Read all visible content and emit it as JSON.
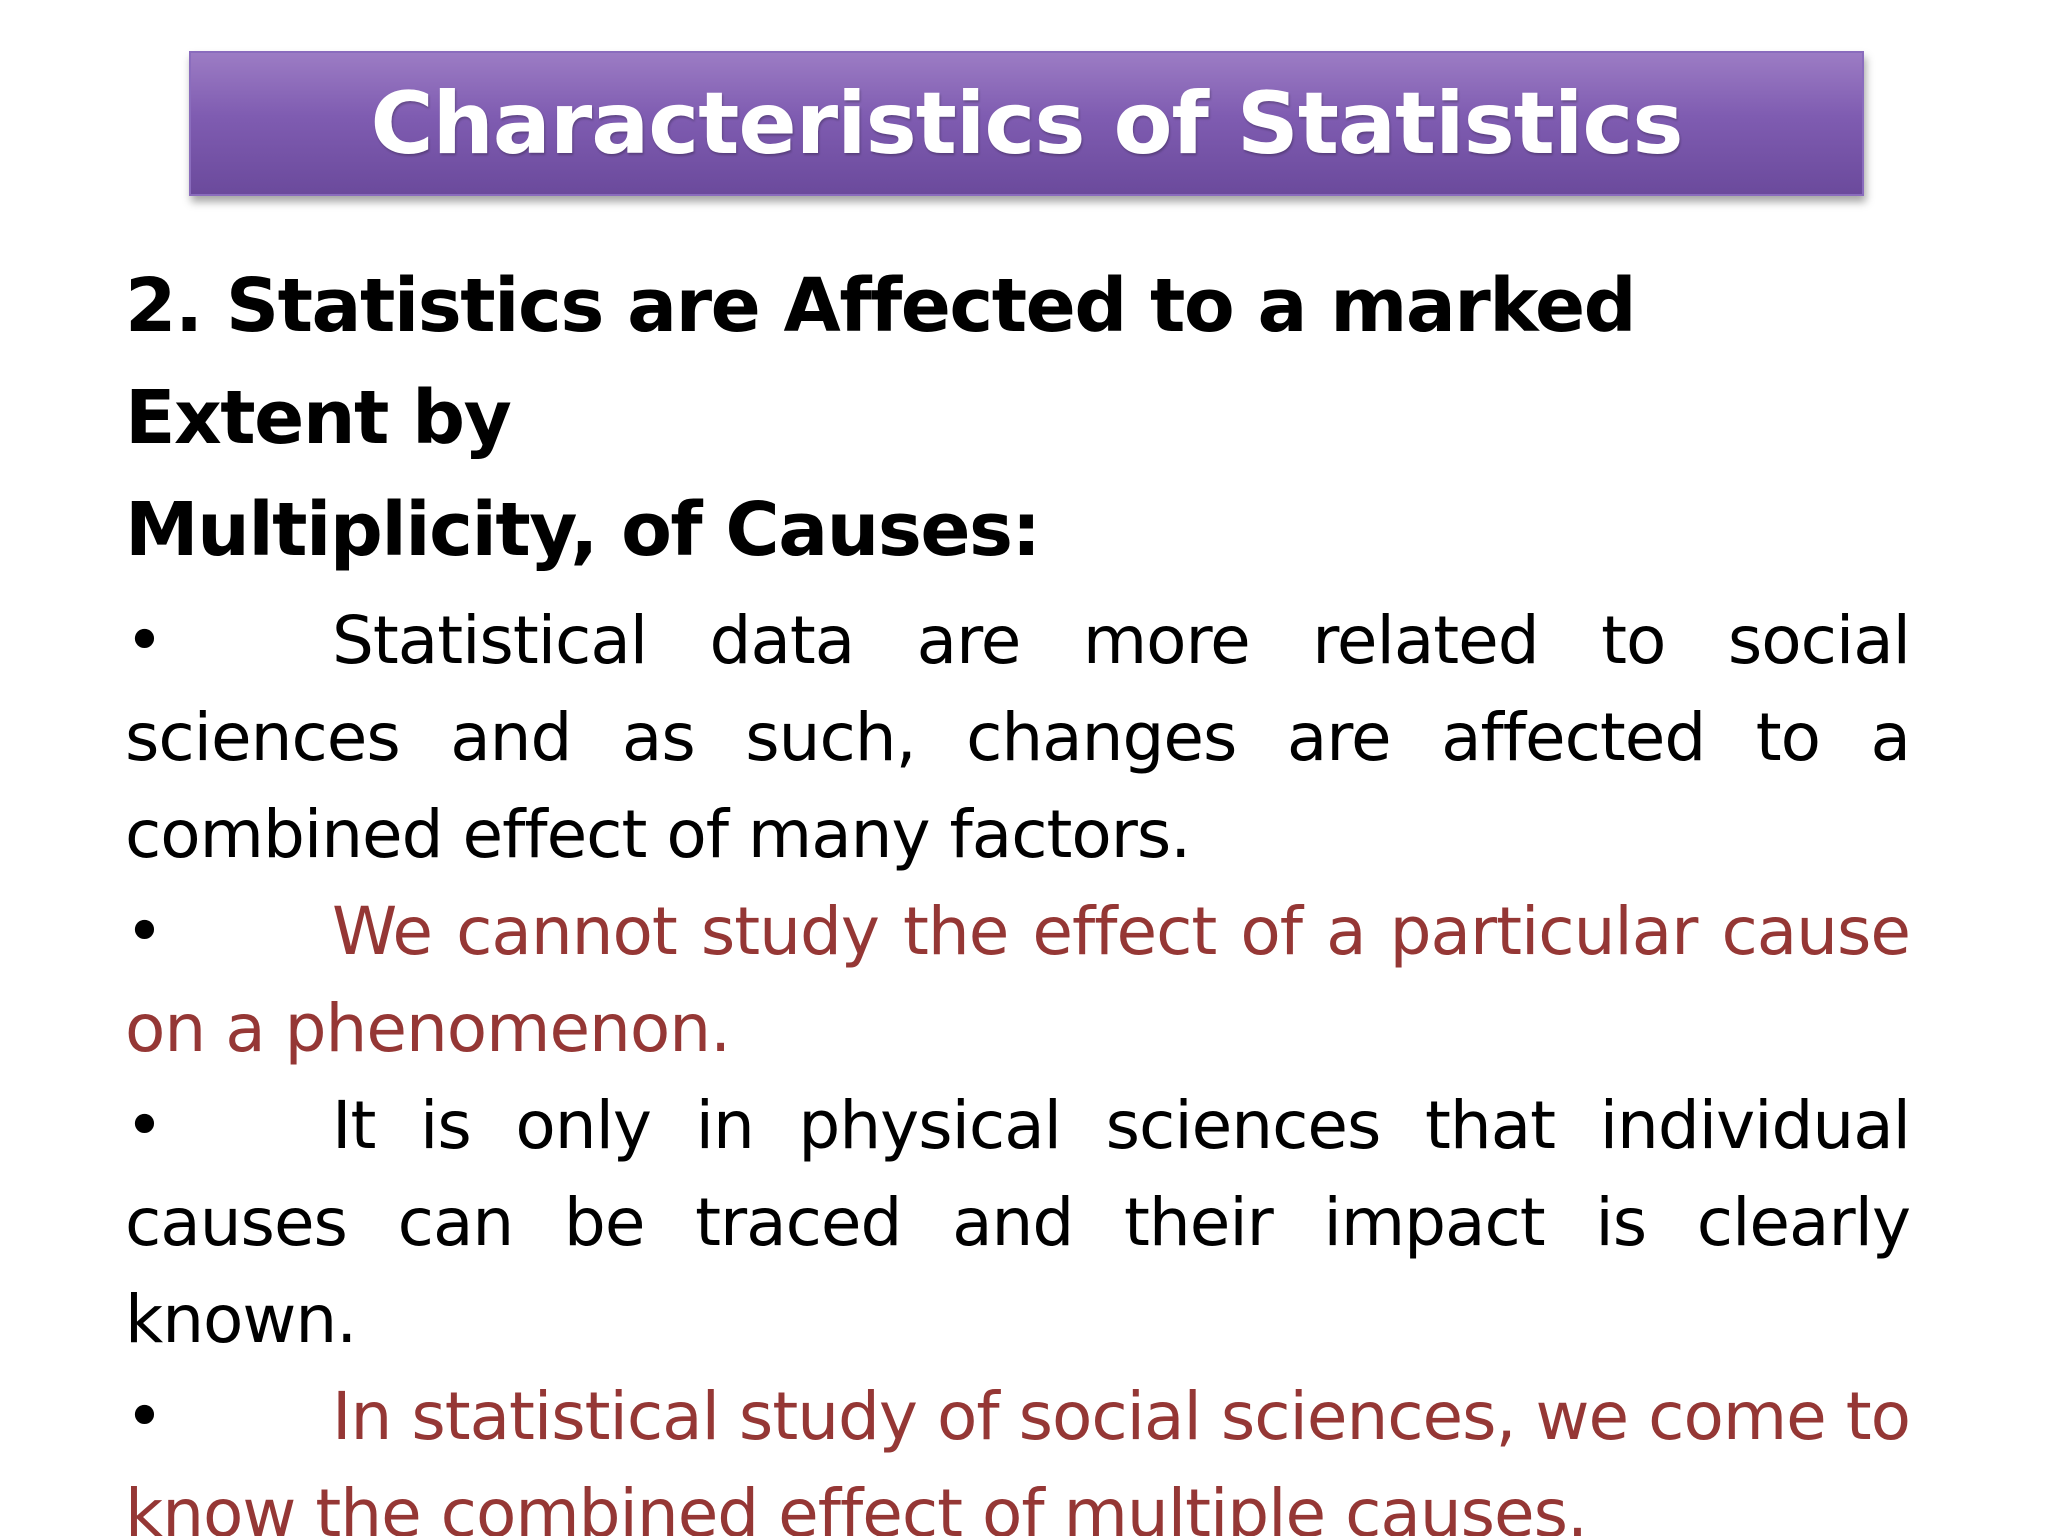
{
  "slide": {
    "title": "Characteristics of Statistics",
    "heading_line1": "2. Statistics are Affected to a marked Extent by",
    "heading_line2": "Multiplicity, of Causes:",
    "bullet_symbol": "•",
    "bullets": [
      {
        "text": "Statistical data are more related to social sciences and as such, changes are affected to a combined effect of many factors.",
        "color": "#000000"
      },
      {
        "text": "We cannot study the effect of a particular cause on a phenomenon.",
        "color": "#953735"
      },
      {
        "text": "It is only in physical sciences that individual causes can be traced and their impact is clearly known.",
        "color": "#000000"
      },
      {
        "text": "In statistical study of social sciences, we come to know the combined effect of multiple causes.",
        "color": "#953735"
      }
    ]
  }
}
